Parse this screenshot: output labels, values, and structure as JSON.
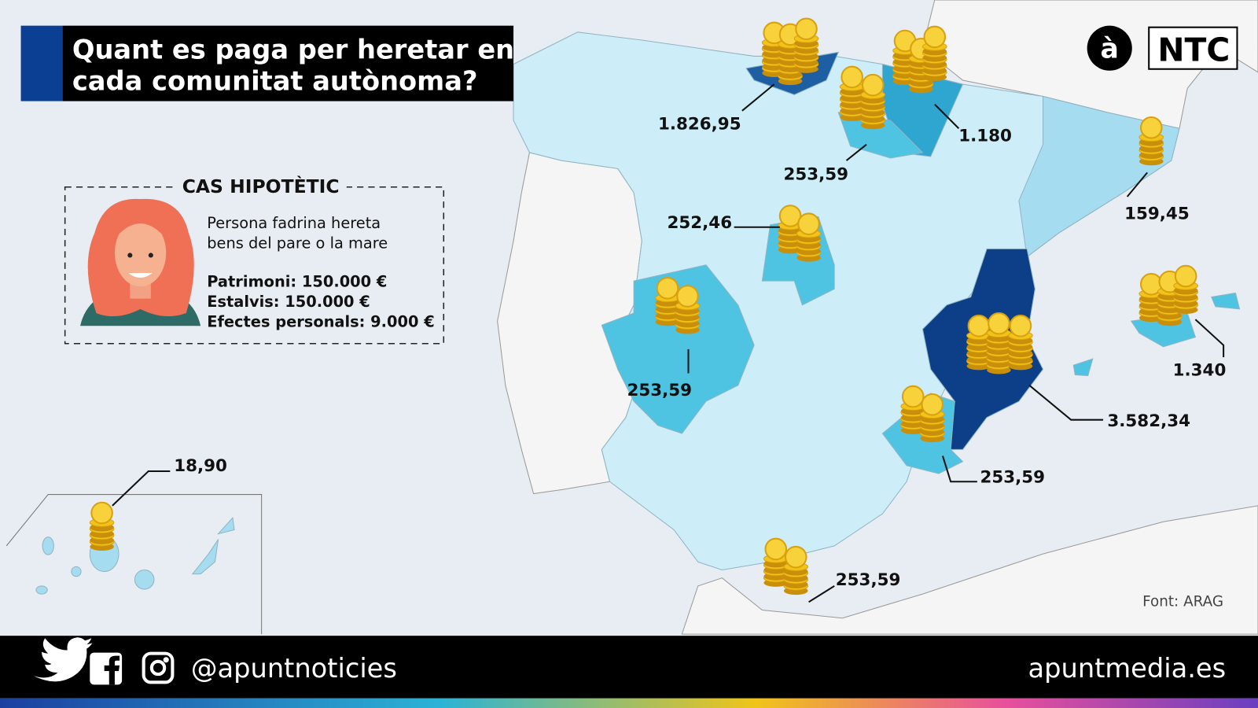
{
  "title": {
    "line1": "Quant es paga per heretar en",
    "line2": "cada comunitat autònoma?"
  },
  "logos": {
    "a_logo": "à",
    "ntc_logo": "NTC"
  },
  "case_box": {
    "heading": "CAS HIPOTÈTIC",
    "desc_line1": "Persona fadrina hereta",
    "desc_line2": "bens del pare o la mare",
    "items": [
      "Patrimoni: 150.000 €",
      "Estalvis: 150.000 €",
      "Efectes personals: 9.000 €"
    ],
    "icon": "woman-avatar-icon"
  },
  "map_values": [
    "1.826,95",
    "1.180",
    "253,59",
    "159,45",
    "252,46",
    "253,59",
    "1.340",
    "3.582,34",
    "253,59",
    "253,59",
    "18,90"
  ],
  "source": "Font: ARAG",
  "footer": {
    "handle": "@apuntnoticies",
    "site": "apuntmedia.es",
    "icons": [
      "twitter-icon",
      "facebook-icon",
      "instagram-icon"
    ]
  },
  "colors": {
    "sea": "#e7edf2",
    "other_land": "#f5f5f5",
    "level_low": "#cdeef8",
    "level_mid_low": "#a6dcef",
    "level_mid": "#4fc3e2",
    "level_high": "#1d5fa2",
    "level_max": "#0c3f87",
    "coin": "#f2c418",
    "title_accent": "#0b3f94"
  }
}
